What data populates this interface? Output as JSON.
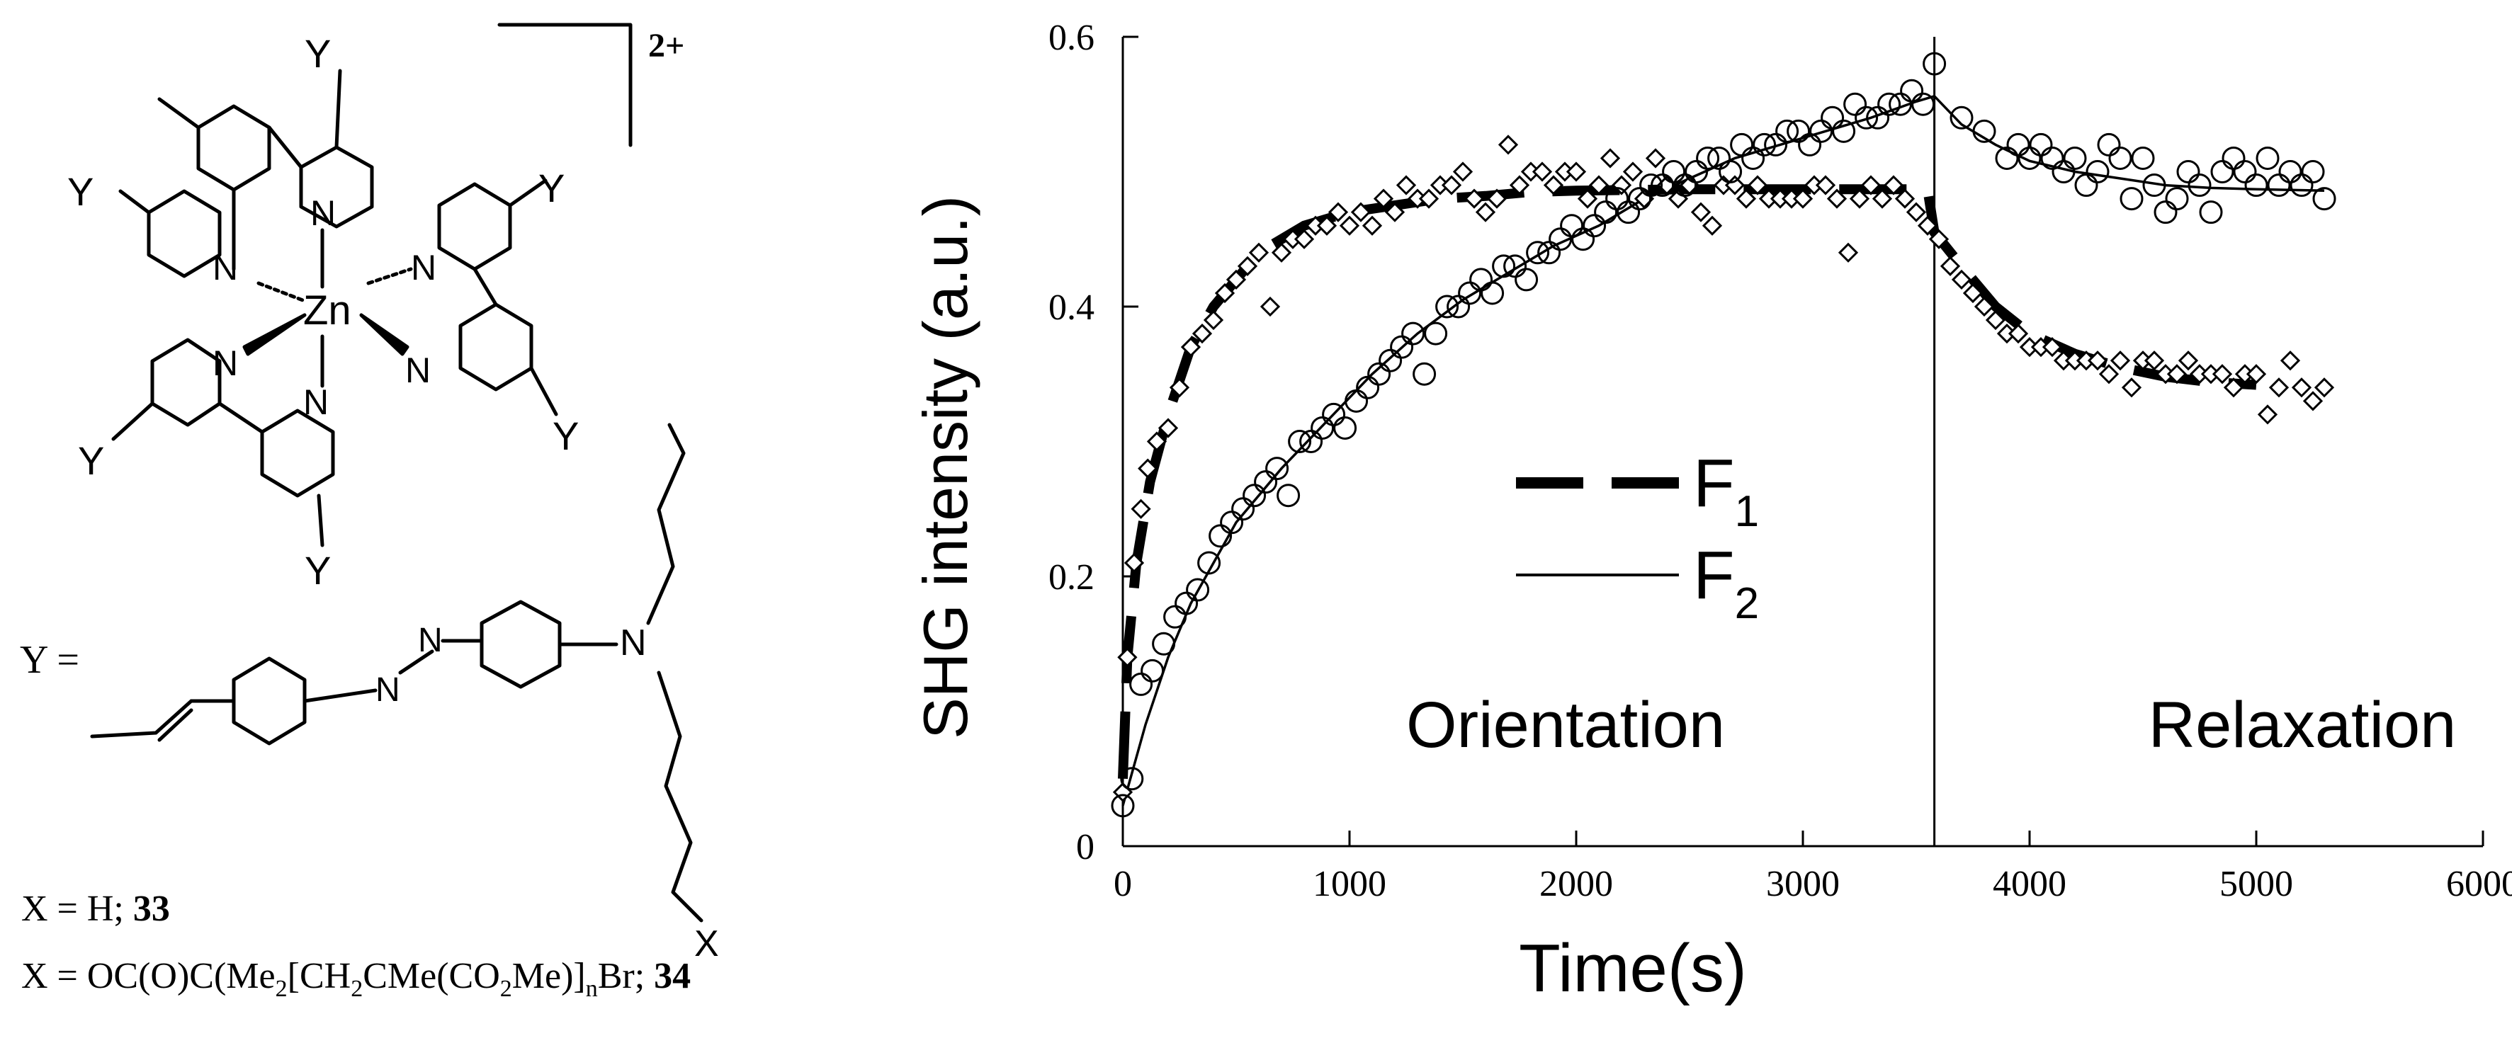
{
  "structure": {
    "charge": "2+",
    "metal": "Zn",
    "y_label": "Y",
    "n_label": "N",
    "x_label": "X",
    "y_def_prefix": "Y ="
  },
  "caption": {
    "line1": "X = H; 33",
    "line1_text": "X = H; ",
    "line1_num": "33",
    "line2": "X = OC(O)C(Me2[CH2CMe(CO2Me)]nBr; 34",
    "line2_parts": [
      "X = OC(O)C(Me",
      "2",
      "[CH",
      "2",
      "CMe(CO",
      "2",
      "Me)]",
      "n",
      "Br; ",
      "34"
    ]
  },
  "chart_data": {
    "type": "scatter",
    "xlabel": "Time(s)",
    "ylabel": "SHG intensity (a.u.)",
    "xlim": [
      0,
      6000
    ],
    "ylim": [
      0,
      0.6
    ],
    "x_ticks": [
      "0",
      "1000",
      "2000",
      "3000",
      "4000",
      "5000",
      "6000"
    ],
    "y_ticks": [
      "0",
      "0.2",
      "0.4",
      "0.6"
    ],
    "divider_x": 3580,
    "region_labels": [
      "Orientation",
      "Relaxation"
    ],
    "legend": [
      {
        "name": "F",
        "sub": "1",
        "style": "dashed-thick"
      },
      {
        "name": "F",
        "sub": "2",
        "style": "solid-thin"
      }
    ],
    "series": [
      {
        "name": "F1",
        "marker": "diamond",
        "points": [
          [
            0,
            0.04
          ],
          [
            20,
            0.14
          ],
          [
            50,
            0.21
          ],
          [
            80,
            0.25
          ],
          [
            110,
            0.28
          ],
          [
            150,
            0.3
          ],
          [
            200,
            0.31
          ],
          [
            250,
            0.34
          ],
          [
            300,
            0.37
          ],
          [
            350,
            0.38
          ],
          [
            400,
            0.39
          ],
          [
            450,
            0.41
          ],
          [
            500,
            0.42
          ],
          [
            550,
            0.43
          ],
          [
            600,
            0.44
          ],
          [
            650,
            0.4
          ],
          [
            700,
            0.44
          ],
          [
            750,
            0.45
          ],
          [
            800,
            0.45
          ],
          [
            850,
            0.46
          ],
          [
            900,
            0.46
          ],
          [
            950,
            0.47
          ],
          [
            1000,
            0.46
          ],
          [
            1050,
            0.47
          ],
          [
            1100,
            0.46
          ],
          [
            1150,
            0.48
          ],
          [
            1200,
            0.47
          ],
          [
            1250,
            0.49
          ],
          [
            1300,
            0.48
          ],
          [
            1350,
            0.48
          ],
          [
            1400,
            0.49
          ],
          [
            1450,
            0.49
          ],
          [
            1500,
            0.5
          ],
          [
            1550,
            0.48
          ],
          [
            1600,
            0.47
          ],
          [
            1650,
            0.48
          ],
          [
            1700,
            0.52
          ],
          [
            1750,
            0.49
          ],
          [
            1800,
            0.5
          ],
          [
            1850,
            0.5
          ],
          [
            1900,
            0.49
          ],
          [
            1950,
            0.5
          ],
          [
            2000,
            0.5
          ],
          [
            2050,
            0.48
          ],
          [
            2100,
            0.49
          ],
          [
            2150,
            0.51
          ],
          [
            2200,
            0.49
          ],
          [
            2250,
            0.5
          ],
          [
            2300,
            0.48
          ],
          [
            2350,
            0.51
          ],
          [
            2400,
            0.49
          ],
          [
            2450,
            0.48
          ],
          [
            2500,
            0.49
          ],
          [
            2550,
            0.47
          ],
          [
            2600,
            0.46
          ],
          [
            2650,
            0.49
          ],
          [
            2700,
            0.49
          ],
          [
            2750,
            0.48
          ],
          [
            2800,
            0.49
          ],
          [
            2850,
            0.48
          ],
          [
            2900,
            0.48
          ],
          [
            2950,
            0.48
          ],
          [
            3000,
            0.48
          ],
          [
            3050,
            0.49
          ],
          [
            3100,
            0.49
          ],
          [
            3150,
            0.48
          ],
          [
            3200,
            0.44
          ],
          [
            3250,
            0.48
          ],
          [
            3300,
            0.49
          ],
          [
            3350,
            0.48
          ],
          [
            3400,
            0.49
          ],
          [
            3450,
            0.48
          ],
          [
            3500,
            0.47
          ],
          [
            3550,
            0.46
          ],
          [
            3600,
            0.45
          ],
          [
            3650,
            0.43
          ],
          [
            3700,
            0.42
          ],
          [
            3750,
            0.41
          ],
          [
            3800,
            0.4
          ],
          [
            3850,
            0.39
          ],
          [
            3900,
            0.38
          ],
          [
            3950,
            0.38
          ],
          [
            4000,
            0.37
          ],
          [
            4050,
            0.37
          ],
          [
            4100,
            0.37
          ],
          [
            4150,
            0.36
          ],
          [
            4200,
            0.36
          ],
          [
            4250,
            0.36
          ],
          [
            4300,
            0.36
          ],
          [
            4350,
            0.35
          ],
          [
            4400,
            0.36
          ],
          [
            4450,
            0.34
          ],
          [
            4500,
            0.36
          ],
          [
            4550,
            0.36
          ],
          [
            4600,
            0.35
          ],
          [
            4650,
            0.35
          ],
          [
            4700,
            0.36
          ],
          [
            4750,
            0.35
          ],
          [
            4800,
            0.35
          ],
          [
            4850,
            0.35
          ],
          [
            4900,
            0.34
          ],
          [
            4950,
            0.35
          ],
          [
            5000,
            0.35
          ],
          [
            5050,
            0.32
          ],
          [
            5100,
            0.34
          ],
          [
            5150,
            0.36
          ],
          [
            5200,
            0.34
          ],
          [
            5250,
            0.33
          ],
          [
            5300,
            0.34
          ]
        ],
        "fit": [
          [
            0,
            0.05
          ],
          [
            20,
            0.14
          ],
          [
            60,
            0.21
          ],
          [
            120,
            0.27
          ],
          [
            200,
            0.32
          ],
          [
            300,
            0.37
          ],
          [
            400,
            0.4
          ],
          [
            500,
            0.42
          ],
          [
            600,
            0.44
          ],
          [
            800,
            0.46
          ],
          [
            1000,
            0.47
          ],
          [
            1200,
            0.475
          ],
          [
            1400,
            0.48
          ],
          [
            1600,
            0.482
          ],
          [
            1800,
            0.485
          ],
          [
            2000,
            0.486
          ],
          [
            2500,
            0.487
          ],
          [
            3000,
            0.487
          ],
          [
            3550,
            0.487
          ],
          [
            3580,
            0.455
          ],
          [
            3700,
            0.43
          ],
          [
            3850,
            0.4
          ],
          [
            4000,
            0.38
          ],
          [
            4200,
            0.365
          ],
          [
            4400,
            0.355
          ],
          [
            4600,
            0.348
          ],
          [
            4800,
            0.344
          ],
          [
            5000,
            0.342
          ]
        ]
      },
      {
        "name": "F2",
        "marker": "circle",
        "points": [
          [
            0,
            0.03
          ],
          [
            40,
            0.05
          ],
          [
            80,
            0.12
          ],
          [
            130,
            0.13
          ],
          [
            180,
            0.15
          ],
          [
            230,
            0.17
          ],
          [
            280,
            0.18
          ],
          [
            330,
            0.19
          ],
          [
            380,
            0.21
          ],
          [
            430,
            0.23
          ],
          [
            480,
            0.24
          ],
          [
            530,
            0.25
          ],
          [
            580,
            0.26
          ],
          [
            630,
            0.27
          ],
          [
            680,
            0.28
          ],
          [
            730,
            0.26
          ],
          [
            780,
            0.3
          ],
          [
            830,
            0.3
          ],
          [
            880,
            0.31
          ],
          [
            930,
            0.32
          ],
          [
            980,
            0.31
          ],
          [
            1030,
            0.33
          ],
          [
            1080,
            0.34
          ],
          [
            1130,
            0.35
          ],
          [
            1180,
            0.36
          ],
          [
            1230,
            0.37
          ],
          [
            1280,
            0.38
          ],
          [
            1330,
            0.35
          ],
          [
            1380,
            0.38
          ],
          [
            1430,
            0.4
          ],
          [
            1480,
            0.4
          ],
          [
            1530,
            0.41
          ],
          [
            1580,
            0.42
          ],
          [
            1630,
            0.41
          ],
          [
            1680,
            0.43
          ],
          [
            1730,
            0.43
          ],
          [
            1780,
            0.42
          ],
          [
            1830,
            0.44
          ],
          [
            1880,
            0.44
          ],
          [
            1930,
            0.45
          ],
          [
            1980,
            0.46
          ],
          [
            2030,
            0.45
          ],
          [
            2080,
            0.46
          ],
          [
            2130,
            0.47
          ],
          [
            2180,
            0.48
          ],
          [
            2230,
            0.47
          ],
          [
            2280,
            0.48
          ],
          [
            2330,
            0.49
          ],
          [
            2380,
            0.49
          ],
          [
            2430,
            0.5
          ],
          [
            2480,
            0.49
          ],
          [
            2530,
            0.5
          ],
          [
            2580,
            0.51
          ],
          [
            2630,
            0.51
          ],
          [
            2680,
            0.5
          ],
          [
            2730,
            0.52
          ],
          [
            2780,
            0.51
          ],
          [
            2830,
            0.52
          ],
          [
            2880,
            0.52
          ],
          [
            2930,
            0.53
          ],
          [
            2980,
            0.53
          ],
          [
            3030,
            0.52
          ],
          [
            3080,
            0.53
          ],
          [
            3130,
            0.54
          ],
          [
            3180,
            0.53
          ],
          [
            3230,
            0.55
          ],
          [
            3280,
            0.54
          ],
          [
            3330,
            0.54
          ],
          [
            3380,
            0.55
          ],
          [
            3430,
            0.55
          ],
          [
            3480,
            0.56
          ],
          [
            3530,
            0.55
          ],
          [
            3580,
            0.58
          ],
          [
            3700,
            0.54
          ],
          [
            3800,
            0.53
          ],
          [
            3900,
            0.51
          ],
          [
            3950,
            0.52
          ],
          [
            4000,
            0.51
          ],
          [
            4050,
            0.52
          ],
          [
            4100,
            0.51
          ],
          [
            4150,
            0.5
          ],
          [
            4200,
            0.51
          ],
          [
            4250,
            0.49
          ],
          [
            4300,
            0.5
          ],
          [
            4350,
            0.52
          ],
          [
            4400,
            0.51
          ],
          [
            4450,
            0.48
          ],
          [
            4500,
            0.51
          ],
          [
            4550,
            0.49
          ],
          [
            4600,
            0.47
          ],
          [
            4650,
            0.48
          ],
          [
            4700,
            0.5
          ],
          [
            4750,
            0.49
          ],
          [
            4800,
            0.47
          ],
          [
            4850,
            0.5
          ],
          [
            4900,
            0.51
          ],
          [
            4950,
            0.5
          ],
          [
            5000,
            0.49
          ],
          [
            5050,
            0.51
          ],
          [
            5100,
            0.49
          ],
          [
            5150,
            0.5
          ],
          [
            5200,
            0.49
          ],
          [
            5250,
            0.5
          ],
          [
            5300,
            0.48
          ]
        ],
        "fit": [
          [
            0,
            0.03
          ],
          [
            100,
            0.09
          ],
          [
            200,
            0.14
          ],
          [
            300,
            0.18
          ],
          [
            400,
            0.21
          ],
          [
            500,
            0.24
          ],
          [
            700,
            0.28
          ],
          [
            900,
            0.315
          ],
          [
            1100,
            0.35
          ],
          [
            1300,
            0.38
          ],
          [
            1500,
            0.405
          ],
          [
            1700,
            0.425
          ],
          [
            1900,
            0.445
          ],
          [
            2100,
            0.46
          ],
          [
            2300,
            0.48
          ],
          [
            2500,
            0.495
          ],
          [
            2700,
            0.51
          ],
          [
            2900,
            0.52
          ],
          [
            3100,
            0.53
          ],
          [
            3300,
            0.54
          ],
          [
            3500,
            0.552
          ],
          [
            3580,
            0.556
          ],
          [
            3700,
            0.535
          ],
          [
            3850,
            0.52
          ],
          [
            4000,
            0.508
          ],
          [
            4200,
            0.5
          ],
          [
            4400,
            0.495
          ],
          [
            4600,
            0.49
          ],
          [
            4800,
            0.488
          ],
          [
            5000,
            0.487
          ],
          [
            5300,
            0.486
          ]
        ]
      }
    ]
  }
}
